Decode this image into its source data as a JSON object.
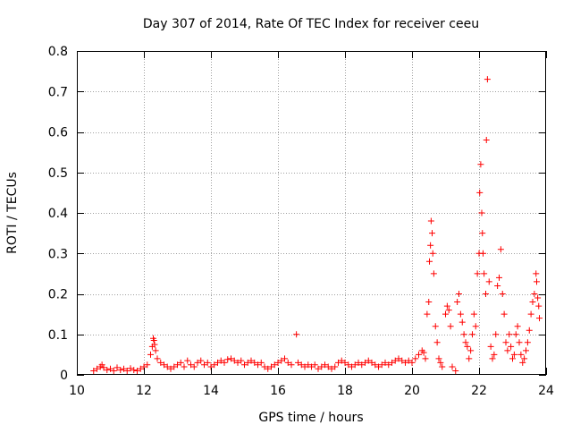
{
  "chart_data": {
    "type": "scatter",
    "title": "Day 307 of 2014, Rate Of TEC Index for receiver ceeu",
    "xlabel": "GPS time / hours",
    "ylabel": "ROTI / TECUs",
    "xlim": [
      10,
      24
    ],
    "ylim": [
      0,
      0.8
    ],
    "x_ticks": [
      10,
      12,
      14,
      16,
      18,
      20,
      22,
      24
    ],
    "y_ticks": [
      0,
      0.1,
      0.2,
      0.3,
      0.4,
      0.5,
      0.6,
      0.7,
      0.8
    ],
    "x_tick_labels": [
      "10",
      "12",
      "14",
      "16",
      "18",
      "20",
      "22",
      "24"
    ],
    "y_tick_labels": [
      "0",
      "0.1",
      "0.2",
      "0.3",
      "0.4",
      "0.5",
      "0.6",
      "0.7",
      "0.8"
    ],
    "grid": true,
    "marker": "+",
    "marker_color": "#ff0000",
    "series": [
      {
        "name": "ROTI",
        "points": [
          [
            10.5,
            0.01
          ],
          [
            10.6,
            0.015
          ],
          [
            10.7,
            0.02
          ],
          [
            10.75,
            0.025
          ],
          [
            10.8,
            0.018
          ],
          [
            10.9,
            0.012
          ],
          [
            11.0,
            0.015
          ],
          [
            11.1,
            0.01
          ],
          [
            11.2,
            0.018
          ],
          [
            11.3,
            0.012
          ],
          [
            11.4,
            0.015
          ],
          [
            11.5,
            0.01
          ],
          [
            11.6,
            0.016
          ],
          [
            11.7,
            0.012
          ],
          [
            11.8,
            0.01
          ],
          [
            11.9,
            0.015
          ],
          [
            12.0,
            0.02
          ],
          [
            12.1,
            0.025
          ],
          [
            12.2,
            0.05
          ],
          [
            12.25,
            0.07
          ],
          [
            12.28,
            0.09
          ],
          [
            12.3,
            0.085
          ],
          [
            12.32,
            0.075
          ],
          [
            12.35,
            0.06
          ],
          [
            12.4,
            0.04
          ],
          [
            12.5,
            0.03
          ],
          [
            12.6,
            0.025
          ],
          [
            12.7,
            0.02
          ],
          [
            12.8,
            0.015
          ],
          [
            12.9,
            0.02
          ],
          [
            13.0,
            0.025
          ],
          [
            13.1,
            0.03
          ],
          [
            13.2,
            0.02
          ],
          [
            13.3,
            0.035
          ],
          [
            13.4,
            0.025
          ],
          [
            13.5,
            0.02
          ],
          [
            13.6,
            0.03
          ],
          [
            13.7,
            0.035
          ],
          [
            13.8,
            0.025
          ],
          [
            13.9,
            0.03
          ],
          [
            14.0,
            0.02
          ],
          [
            14.1,
            0.025
          ],
          [
            14.2,
            0.03
          ],
          [
            14.3,
            0.035
          ],
          [
            14.4,
            0.03
          ],
          [
            14.5,
            0.038
          ],
          [
            14.6,
            0.04
          ],
          [
            14.7,
            0.035
          ],
          [
            14.8,
            0.03
          ],
          [
            14.9,
            0.035
          ],
          [
            15.0,
            0.025
          ],
          [
            15.1,
            0.03
          ],
          [
            15.2,
            0.035
          ],
          [
            15.3,
            0.03
          ],
          [
            15.4,
            0.025
          ],
          [
            15.5,
            0.03
          ],
          [
            15.6,
            0.02
          ],
          [
            15.7,
            0.015
          ],
          [
            15.8,
            0.02
          ],
          [
            15.9,
            0.025
          ],
          [
            16.0,
            0.03
          ],
          [
            16.1,
            0.035
          ],
          [
            16.2,
            0.04
          ],
          [
            16.3,
            0.03
          ],
          [
            16.4,
            0.025
          ],
          [
            16.55,
            0.1
          ],
          [
            16.6,
            0.03
          ],
          [
            16.7,
            0.025
          ],
          [
            16.8,
            0.02
          ],
          [
            16.9,
            0.025
          ],
          [
            17.0,
            0.02
          ],
          [
            17.1,
            0.025
          ],
          [
            17.2,
            0.015
          ],
          [
            17.3,
            0.02
          ],
          [
            17.4,
            0.025
          ],
          [
            17.5,
            0.02
          ],
          [
            17.6,
            0.015
          ],
          [
            17.7,
            0.02
          ],
          [
            17.8,
            0.03
          ],
          [
            17.9,
            0.035
          ],
          [
            18.0,
            0.03
          ],
          [
            18.1,
            0.025
          ],
          [
            18.2,
            0.02
          ],
          [
            18.3,
            0.025
          ],
          [
            18.4,
            0.03
          ],
          [
            18.5,
            0.025
          ],
          [
            18.6,
            0.03
          ],
          [
            18.7,
            0.035
          ],
          [
            18.8,
            0.03
          ],
          [
            18.9,
            0.025
          ],
          [
            19.0,
            0.02
          ],
          [
            19.1,
            0.025
          ],
          [
            19.2,
            0.03
          ],
          [
            19.3,
            0.025
          ],
          [
            19.4,
            0.03
          ],
          [
            19.5,
            0.035
          ],
          [
            19.6,
            0.04
          ],
          [
            19.7,
            0.035
          ],
          [
            19.8,
            0.03
          ],
          [
            19.9,
            0.035
          ],
          [
            20.0,
            0.03
          ],
          [
            20.1,
            0.04
          ],
          [
            20.2,
            0.05
          ],
          [
            20.3,
            0.06
          ],
          [
            20.35,
            0.055
          ],
          [
            20.4,
            0.04
          ],
          [
            20.45,
            0.15
          ],
          [
            20.5,
            0.18
          ],
          [
            20.52,
            0.28
          ],
          [
            20.55,
            0.32
          ],
          [
            20.57,
            0.38
          ],
          [
            20.6,
            0.35
          ],
          [
            20.62,
            0.3
          ],
          [
            20.65,
            0.25
          ],
          [
            20.7,
            0.12
          ],
          [
            20.75,
            0.08
          ],
          [
            20.8,
            0.04
          ],
          [
            20.85,
            0.03
          ],
          [
            20.9,
            0.02
          ],
          [
            21.0,
            0.15
          ],
          [
            21.05,
            0.17
          ],
          [
            21.1,
            0.16
          ],
          [
            21.15,
            0.12
          ],
          [
            21.2,
            0.02
          ],
          [
            21.3,
            0.01
          ],
          [
            21.35,
            0.18
          ],
          [
            21.4,
            0.2
          ],
          [
            21.45,
            0.15
          ],
          [
            21.5,
            0.13
          ],
          [
            21.55,
            0.1
          ],
          [
            21.6,
            0.08
          ],
          [
            21.65,
            0.07
          ],
          [
            21.7,
            0.04
          ],
          [
            21.75,
            0.06
          ],
          [
            21.8,
            0.1
          ],
          [
            21.85,
            0.15
          ],
          [
            21.9,
            0.12
          ],
          [
            21.95,
            0.25
          ],
          [
            22.0,
            0.3
          ],
          [
            22.02,
            0.45
          ],
          [
            22.05,
            0.52
          ],
          [
            22.08,
            0.4
          ],
          [
            22.1,
            0.35
          ],
          [
            22.12,
            0.3
          ],
          [
            22.15,
            0.25
          ],
          [
            22.2,
            0.2
          ],
          [
            22.22,
            0.58
          ],
          [
            22.25,
            0.73
          ],
          [
            22.3,
            0.23
          ],
          [
            22.35,
            0.07
          ],
          [
            22.4,
            0.04
          ],
          [
            22.45,
            0.05
          ],
          [
            22.5,
            0.1
          ],
          [
            22.55,
            0.22
          ],
          [
            22.6,
            0.24
          ],
          [
            22.65,
            0.31
          ],
          [
            22.7,
            0.2
          ],
          [
            22.75,
            0.15
          ],
          [
            22.8,
            0.08
          ],
          [
            22.85,
            0.06
          ],
          [
            22.9,
            0.1
          ],
          [
            22.95,
            0.07
          ],
          [
            23.0,
            0.04
          ],
          [
            23.05,
            0.05
          ],
          [
            23.1,
            0.1
          ],
          [
            23.15,
            0.12
          ],
          [
            23.2,
            0.08
          ],
          [
            23.25,
            0.05
          ],
          [
            23.3,
            0.03
          ],
          [
            23.35,
            0.04
          ],
          [
            23.4,
            0.06
          ],
          [
            23.45,
            0.08
          ],
          [
            23.5,
            0.11
          ],
          [
            23.55,
            0.15
          ],
          [
            23.6,
            0.18
          ],
          [
            23.65,
            0.2
          ],
          [
            23.7,
            0.25
          ],
          [
            23.72,
            0.23
          ],
          [
            23.75,
            0.19
          ],
          [
            23.78,
            0.17
          ],
          [
            23.8,
            0.14
          ]
        ]
      }
    ]
  }
}
